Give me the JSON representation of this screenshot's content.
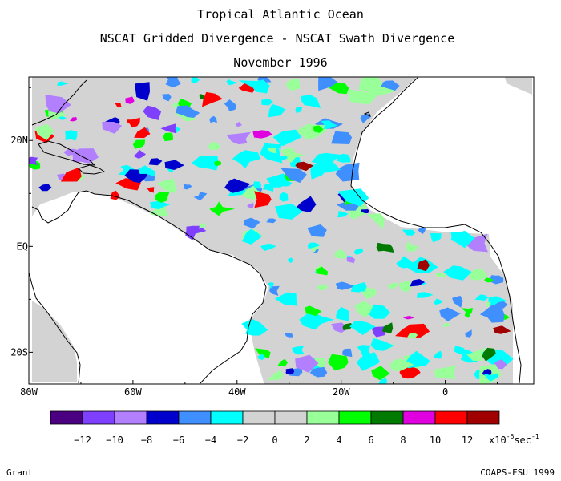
{
  "titles": {
    "line1": "Tropical Atlantic Ocean",
    "line2": "NSCAT Gridded Divergence - NSCAT Swath Divergence",
    "line3": "November 1996"
  },
  "map": {
    "lon_range": [
      -80,
      17
    ],
    "lat_range": [
      -26,
      32
    ],
    "x_ticks": [
      {
        "label": "80W",
        "lon": -80
      },
      {
        "label": "60W",
        "lon": -60
      },
      {
        "label": "40W",
        "lon": -40
      },
      {
        "label": "20W",
        "lon": -20
      },
      {
        "label": "0",
        "lon": 0
      }
    ],
    "y_ticks": [
      {
        "label": "20N",
        "lat": 20
      },
      {
        "label": "EQ",
        "lat": 0
      },
      {
        "label": "20S",
        "lat": -20
      }
    ],
    "background_field_color": "#d3d3d3",
    "land_color": "#ffffff"
  },
  "colorbar": {
    "colors": [
      "#4b0082",
      "#7f3fff",
      "#b27fff",
      "#0000cd",
      "#3f8fff",
      "#00ffff",
      "#d3d3d3",
      "#d3d3d3",
      "#99ff99",
      "#00ff00",
      "#007a00",
      "#e000e0",
      "#ff0000",
      "#a00000"
    ],
    "labels": [
      "-12",
      "-10",
      "-8",
      "-6",
      "-4",
      "-2",
      "0",
      "2",
      "4",
      "6",
      "8",
      "10",
      "12"
    ],
    "units_prefix": "x10",
    "units_exponent": "-6",
    "units_suffix": "sec",
    "units_suffix_exponent": "-1"
  },
  "footer": {
    "left": "Grant",
    "right": "COAPS-FSU 1999"
  }
}
